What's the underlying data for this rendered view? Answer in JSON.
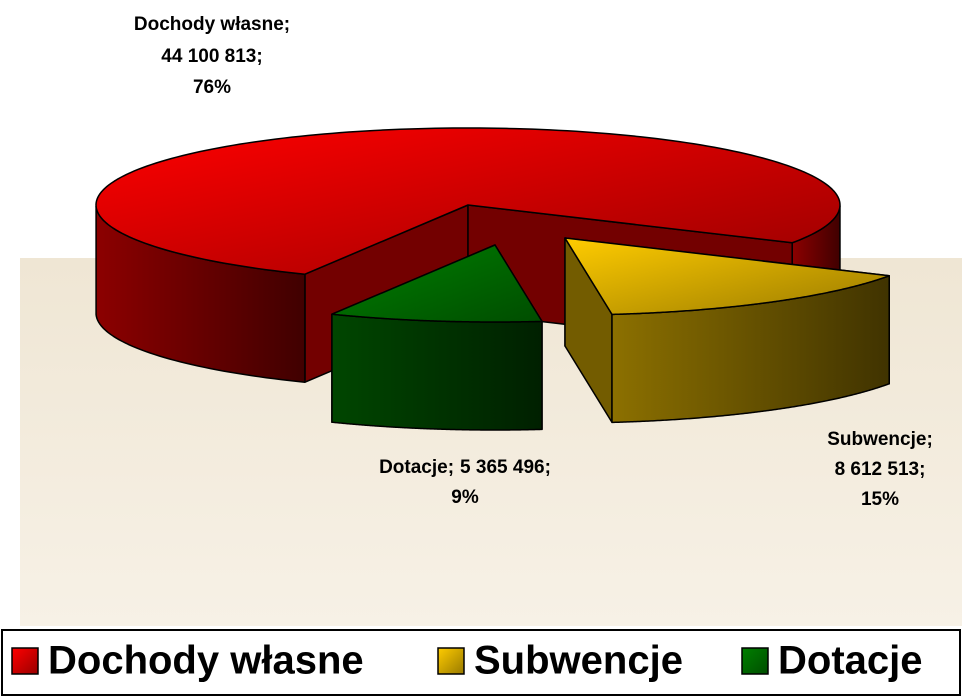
{
  "chart_data": {
    "type": "pie3d",
    "categories": [
      "Dochody własne",
      "Subwencje",
      "Dotacje"
    ],
    "values": [
      44100813,
      8612513,
      5365496
    ],
    "value_labels": [
      "44 100 813",
      "8 612 513",
      "5 365 496"
    ],
    "percents": [
      76,
      15,
      9
    ],
    "percent_labels": [
      "76%",
      "15%",
      "9%"
    ],
    "separator": ";",
    "colors": [
      "#ff0000",
      "#ffcc00",
      "#008000"
    ],
    "legend": "bottom"
  }
}
